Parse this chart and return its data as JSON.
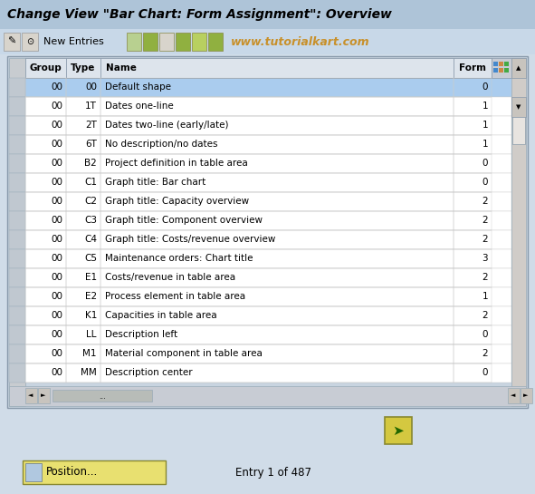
{
  "title": "Change View \"Bar Chart: Form Assignment\": Overview",
  "watermark": "www.tutorialkart.com",
  "toolbar_text": "New Entries",
  "outer_bg": "#d0dce8",
  "title_bg": "#aec4d8",
  "toolbar_bg": "#c8d8e8",
  "table_outer_bg": "#c8d4e0",
  "table_inner_bg": "#ffffff",
  "left_margin_bg": "#c8ccd0",
  "header_bg": "#dde8f0",
  "highlight_row_bg": "#aaccee",
  "row_bg": "#ffffff",
  "scrollbar_bg": "#d0d0cc",
  "rows": [
    [
      "00",
      "00",
      "Default shape",
      "0"
    ],
    [
      "00",
      "1T",
      "Dates one-line",
      "1"
    ],
    [
      "00",
      "2T",
      "Dates two-line (early/late)",
      "1"
    ],
    [
      "00",
      "6T",
      "No description/no dates",
      "1"
    ],
    [
      "00",
      "B2",
      "Project definition in table area",
      "0"
    ],
    [
      "00",
      "C1",
      "Graph title: Bar chart",
      "0"
    ],
    [
      "00",
      "C2",
      "Graph title: Capacity overview",
      "2"
    ],
    [
      "00",
      "C3",
      "Graph title: Component overview",
      "2"
    ],
    [
      "00",
      "C4",
      "Graph title: Costs/revenue overview",
      "2"
    ],
    [
      "00",
      "C5",
      "Maintenance orders: Chart title",
      "3"
    ],
    [
      "00",
      "E1",
      "Costs/revenue in table area",
      "2"
    ],
    [
      "00",
      "E2",
      "Process element in table area",
      "1"
    ],
    [
      "00",
      "K1",
      "Capacities in table area",
      "2"
    ],
    [
      "00",
      "LL",
      "Description left",
      "0"
    ],
    [
      "00",
      "M1",
      "Material component in table area",
      "2"
    ],
    [
      "00",
      "MM",
      "Description center",
      "0"
    ]
  ],
  "highlight_row": 0,
  "footer_text": "Entry 1 of 487",
  "position_btn": "Position...",
  "col_labels": [
    "Group",
    "Type",
    "Name",
    "Form"
  ]
}
